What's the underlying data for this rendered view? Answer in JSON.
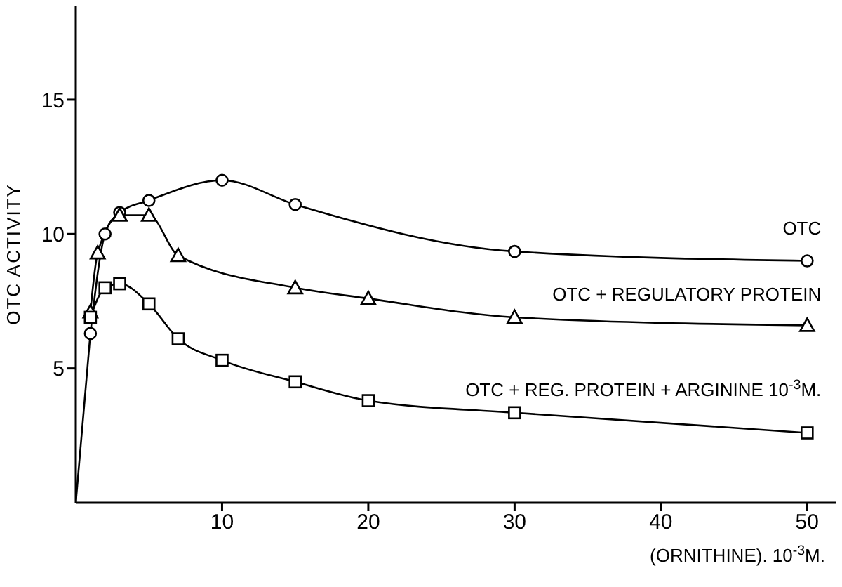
{
  "chart_data": {
    "type": "line",
    "xlabel": "(ORNITHINE). 10$^{-3}$M.",
    "ylabel": "OTC ACTIVITY",
    "xlim": [
      0,
      52
    ],
    "ylim": [
      0,
      18.5
    ],
    "xticks": [
      10,
      20,
      30,
      40,
      50
    ],
    "yticks": [
      5,
      10,
      15
    ],
    "grid": false,
    "legend": false,
    "line_style": "solid",
    "series": [
      {
        "name": "OTC",
        "color": "#000000",
        "marker": "circle",
        "x": [
          1,
          2,
          3,
          5,
          10,
          15,
          30,
          50
        ],
        "values": [
          6.3,
          10.0,
          10.8,
          11.25,
          12.0,
          11.1,
          9.35,
          9.0
        ]
      },
      {
        "name": "OTC + REGULATORY PROTEIN",
        "color": "#000000",
        "marker": "triangle",
        "x": [
          1,
          1.5,
          3,
          5,
          7,
          15,
          20,
          30,
          50
        ],
        "values": [
          7.1,
          9.3,
          10.7,
          10.7,
          9.2,
          8.0,
          7.6,
          6.9,
          6.6
        ]
      },
      {
        "name": "OTC + REG. PROTEIN + ARGININE 10$^{-3}$M.",
        "color": "#000000",
        "marker": "square",
        "x": [
          1,
          2,
          3,
          5,
          7,
          10,
          15,
          20,
          30,
          50
        ],
        "values": [
          6.9,
          8.0,
          8.15,
          7.4,
          6.1,
          5.3,
          4.5,
          3.8,
          3.35,
          2.6
        ]
      },
      {
        "color": "#000000",
        "marker": "none",
        "x": [
          0,
          1
        ],
        "values": [
          0,
          6.3
        ]
      }
    ]
  }
}
